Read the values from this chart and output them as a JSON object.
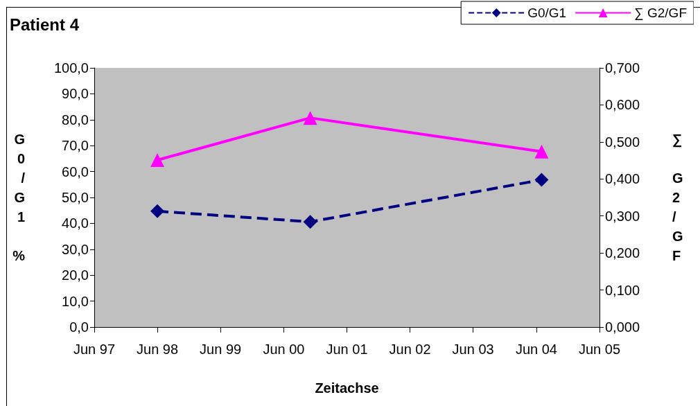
{
  "chart_data": {
    "type": "line",
    "title": "Patient 4",
    "xlabel": "Zeitachse",
    "ylabel": "G0/G1 %",
    "y2label": "∑ G2/GF",
    "x": [
      "1998-06",
      "2000-11",
      "2004-07"
    ],
    "xlim": [
      "1997-06",
      "2005-06"
    ],
    "xticks": [
      {
        "value": "1997-06",
        "label": "Jun 97"
      },
      {
        "value": "1998-06",
        "label": "Jun 98"
      },
      {
        "value": "1999-06",
        "label": "Jun 99"
      },
      {
        "value": "2000-06",
        "label": "Jun 00"
      },
      {
        "value": "2001-06",
        "label": "Jun 01"
      },
      {
        "value": "2002-06",
        "label": "Jun 02"
      },
      {
        "value": "2003-06",
        "label": "Jun 03"
      },
      {
        "value": "2004-06",
        "label": "Jun 04"
      },
      {
        "value": "2005-06",
        "label": "Jun 05"
      }
    ],
    "ylim": [
      0,
      100
    ],
    "yticks": [
      {
        "value": 0,
        "label": "0,0"
      },
      {
        "value": 10,
        "label": "10,0"
      },
      {
        "value": 20,
        "label": "20,0"
      },
      {
        "value": 30,
        "label": "30,0"
      },
      {
        "value": 40,
        "label": "40,0"
      },
      {
        "value": 50,
        "label": "50,0"
      },
      {
        "value": 60,
        "label": "60,0"
      },
      {
        "value": 70,
        "label": "70,0"
      },
      {
        "value": 80,
        "label": "80,0"
      },
      {
        "value": 90,
        "label": "90,0"
      },
      {
        "value": 100,
        "label": "100,0"
      }
    ],
    "y2lim": [
      0,
      0.7
    ],
    "y2ticks": [
      {
        "value": 0,
        "label": "0,000"
      },
      {
        "value": 0.1,
        "label": "0,100"
      },
      {
        "value": 0.2,
        "label": "0,200"
      },
      {
        "value": 0.3,
        "label": "0,300"
      },
      {
        "value": 0.4,
        "label": "0,400"
      },
      {
        "value": 0.5,
        "label": "0,500"
      },
      {
        "value": 0.6,
        "label": "0,600"
      },
      {
        "value": 0.7,
        "label": "0,700"
      }
    ],
    "series": [
      {
        "name": "G0/G1",
        "color": "#000080",
        "values": [
          44.7,
          40.6,
          56.8
        ],
        "marker": "diamond",
        "line_style": "dashed"
      },
      {
        "name": "∑ G2/GF",
        "color": "#ff00ff",
        "values": [
          0.451,
          0.565,
          0.474
        ],
        "marker": "triangle",
        "line_style": "solid",
        "axis": "y2"
      }
    ],
    "grid": false,
    "legend": "top right"
  }
}
